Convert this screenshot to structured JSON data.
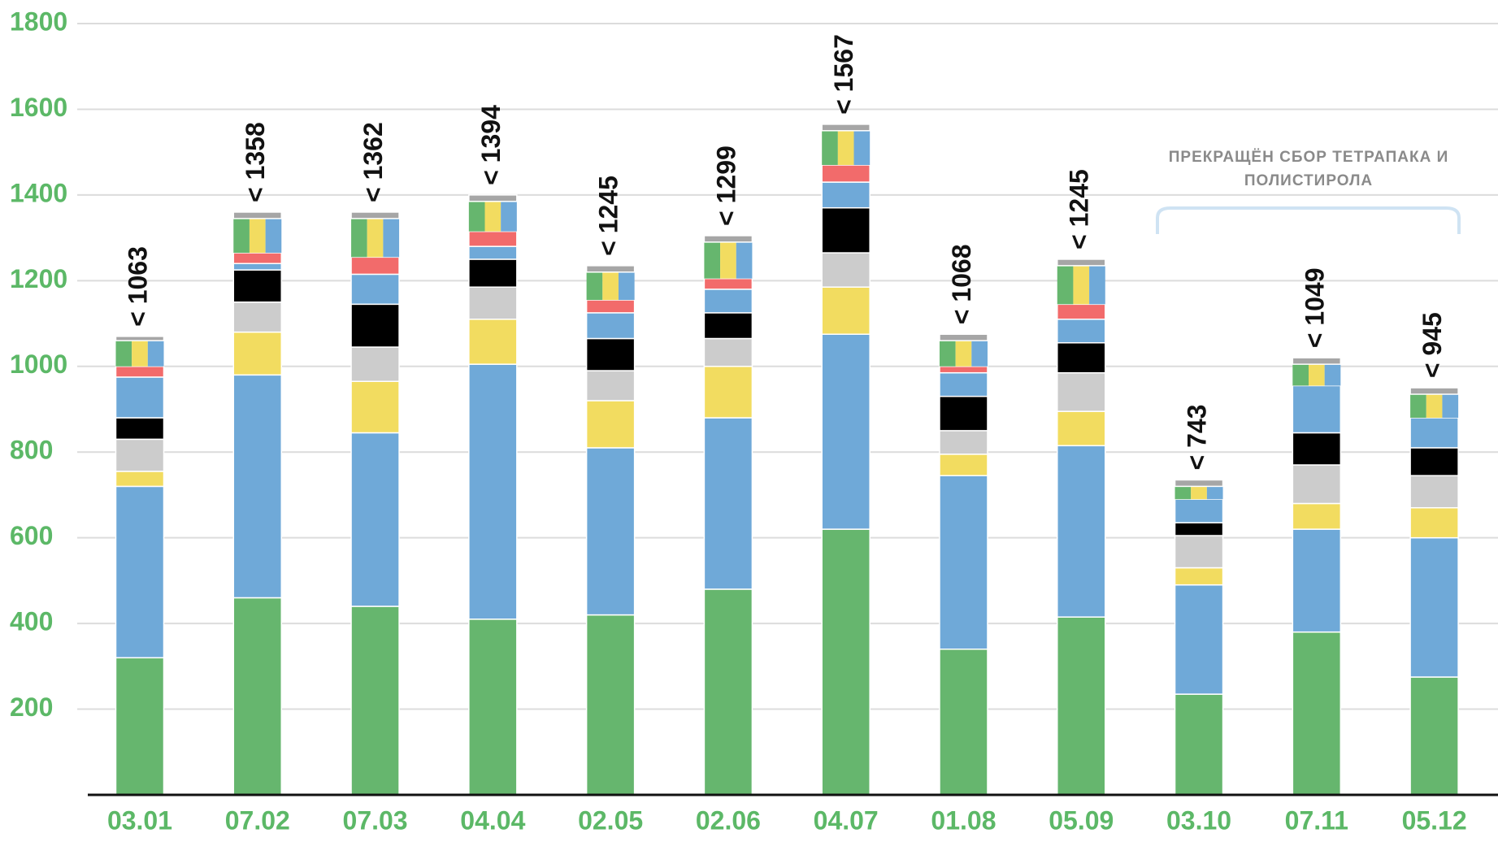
{
  "chart_data": {
    "type": "stacked_bar",
    "categories": [
      "03.01",
      "07.02",
      "07.03",
      "04.04",
      "02.05",
      "02.06",
      "04.07",
      "01.08",
      "05.09",
      "03.10",
      "07.11",
      "05.12"
    ],
    "series": [
      {
        "color": "#66b66e",
        "values": [
          320,
          460,
          440,
          410,
          420,
          480,
          620,
          340,
          415,
          235,
          380,
          275
        ]
      },
      {
        "color": "#6fa9d8",
        "values": [
          400,
          520,
          405,
          595,
          390,
          400,
          455,
          405,
          400,
          255,
          240,
          325
        ]
      },
      {
        "color": "#f2dc60",
        "values": [
          35,
          100,
          120,
          105,
          110,
          120,
          110,
          50,
          80,
          40,
          60,
          70
        ]
      },
      {
        "color": "#cccccc",
        "values": [
          75,
          70,
          80,
          75,
          70,
          65,
          80,
          55,
          90,
          75,
          90,
          75
        ]
      },
      {
        "color": "#000000",
        "values": [
          50,
          75,
          100,
          65,
          75,
          60,
          105,
          80,
          70,
          30,
          75,
          65
        ]
      },
      {
        "color": "#6fa9d8",
        "values": [
          95,
          15,
          70,
          30,
          60,
          55,
          60,
          55,
          55,
          55,
          110,
          70
        ]
      },
      {
        "color": "#f26b6b",
        "values": [
          25,
          25,
          40,
          35,
          30,
          25,
          40,
          15,
          35,
          0,
          0,
          0
        ]
      },
      {
        "colors": [
          "#66b66e",
          "#f2dc60",
          "#6fa9d8"
        ],
        "values": [
          60,
          80,
          90,
          70,
          65,
          85,
          80,
          60,
          90,
          30,
          50,
          55
        ]
      },
      {
        "color": "#a6a6a6",
        "values": [
          10,
          15,
          15,
          15,
          15,
          15,
          15,
          15,
          15,
          15,
          15,
          15
        ]
      }
    ],
    "totals": {
      "values": [
        1063,
        1358,
        1362,
        1394,
        1245,
        1299,
        1567,
        1068,
        1245,
        743,
        1049,
        945
      ],
      "value_labels": [
        "< 1063",
        "< 1358",
        "< 1362",
        "< 1394",
        "< 1245",
        "< 1299",
        "< 1567",
        "< 1068",
        "< 1245",
        "< 743",
        "< 1049",
        "< 945"
      ]
    },
    "annotation": {
      "lines": [
        "ПРЕКРАЩЁН СБОР ТЕТРАПАКА И",
        "ПОЛИСТИРОЛА"
      ]
    },
    "ylim": [
      0,
      1800
    ],
    "yticks": [
      200,
      400,
      600,
      800,
      1000,
      1200,
      1400,
      1600,
      1800
    ],
    "grid": true,
    "tick_color": "#5cb867"
  }
}
